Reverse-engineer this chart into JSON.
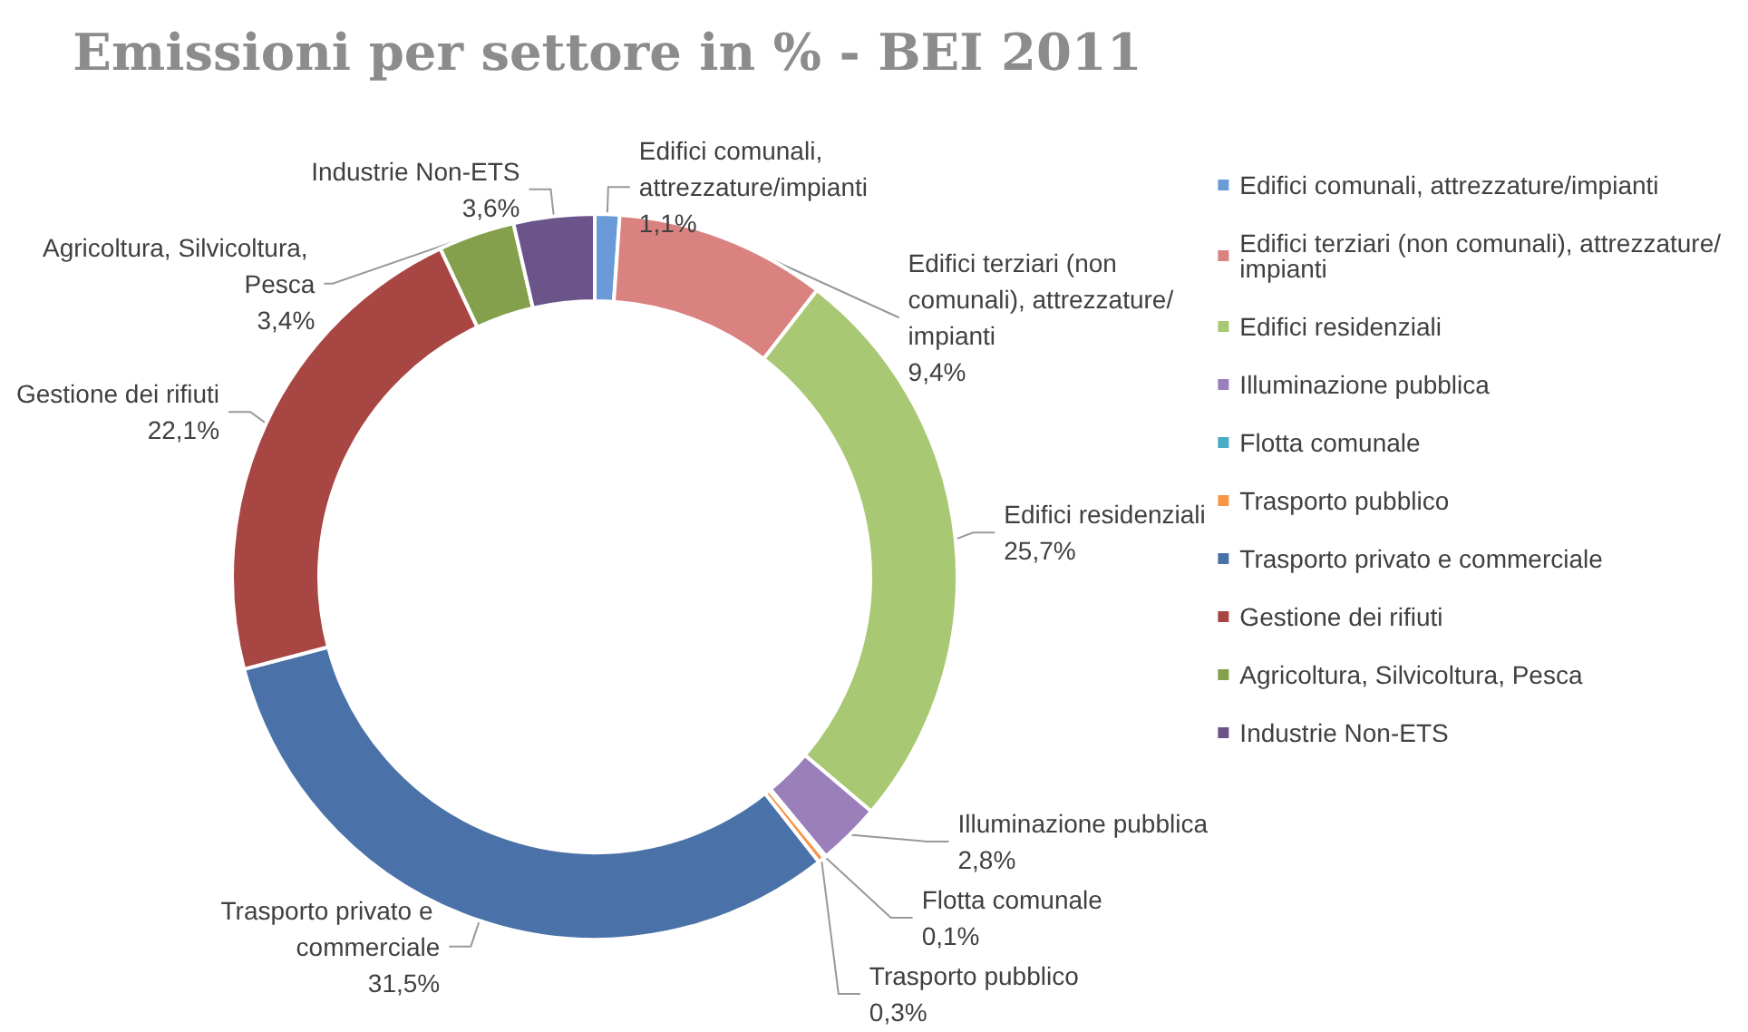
{
  "chart_data": {
    "type": "donut",
    "title": "Emissioni per settore in % - BEI 2011",
    "categories": [
      "Edifici comunali, attrezzature/impianti",
      "Edifici terziari (non comunali), attrezzature/impianti",
      "Edifici residenziali",
      "Illuminazione pubblica",
      "Flotta comunale",
      "Trasporto pubblico",
      "Trasporto privato e commerciale",
      "Gestione dei rifiuti",
      "Agricoltura, Silvicoltura, Pesca",
      "Industrie Non-ETS"
    ],
    "values": [
      1.1,
      9.4,
      25.7,
      2.8,
      0.1,
      0.3,
      31.5,
      22.1,
      3.4,
      3.6
    ],
    "value_labels": [
      "1,1%",
      "9,4%",
      "25,7%",
      "2,8%",
      "0,1%",
      "0,3%",
      "31,5%",
      "22,1%",
      "3,4%",
      "3,6%"
    ],
    "colors": [
      "#6a9bd8",
      "#d9827f",
      "#a9c873",
      "#9a7fbb",
      "#4bacc6",
      "#f79646",
      "#4a72a8",
      "#a84644",
      "#84a04c",
      "#6a5489"
    ],
    "legend": "right"
  }
}
